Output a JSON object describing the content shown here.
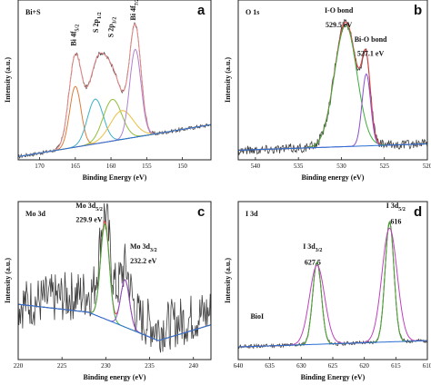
{
  "chart_data": [
    {
      "type": "line",
      "panel_label": "a",
      "title": "Bi+S",
      "xlabel": "Binding Energy (eV)",
      "ylabel": "Intensity (a.u.)",
      "xlim": [
        173,
        146
      ],
      "xticks": [
        170,
        165,
        160,
        155,
        150
      ],
      "ylim": [
        0,
        1
      ],
      "annotations": [
        {
          "text": "Bi 4f",
          "sub": "5/2",
          "x": 164.9,
          "y": 0.78
        },
        {
          "text": "S 2p",
          "sub": "1/2",
          "x": 161.8,
          "y": 0.86
        },
        {
          "text": "S 2p",
          "sub": "3/2",
          "x": 159.7,
          "y": 0.83
        },
        {
          "text": "Bi 4f",
          "sub": "7/2",
          "x": 156.6,
          "y": 0.94
        }
      ],
      "series": [
        {
          "color": "#404040",
          "kind": "raw",
          "baseline": [
            [
              173,
              0.02
            ],
            [
              146,
              0.22
            ]
          ],
          "peaks": [
            [
              165.0,
              0.56,
              0.9
            ],
            [
              162.1,
              0.42,
              1.2
            ],
            [
              159.8,
              0.4,
              1.4
            ],
            [
              156.6,
              0.68,
              0.8
            ]
          ],
          "noise": 0.012
        },
        {
          "color": "#e88a8a",
          "kind": "fit",
          "baseline": [
            [
              173,
              0.02
            ],
            [
              146,
              0.22
            ]
          ],
          "peaks": [
            [
              165.0,
              0.56,
              0.9
            ],
            [
              162.1,
              0.42,
              1.2
            ],
            [
              159.8,
              0.4,
              1.4
            ],
            [
              156.6,
              0.68,
              0.8
            ]
          ]
        },
        {
          "color": "#e07a3a",
          "kind": "peak",
          "baseline": [
            [
              173,
              0.02
            ],
            [
              146,
              0.22
            ]
          ],
          "peaks": [
            [
              165.0,
              0.38,
              0.8
            ]
          ]
        },
        {
          "color": "#3cb0c8",
          "kind": "peak",
          "baseline": [
            [
              173,
              0.02
            ],
            [
              146,
              0.22
            ]
          ],
          "peaks": [
            [
              162.2,
              0.28,
              1.1
            ]
          ]
        },
        {
          "color": "#8fbf3a",
          "kind": "peak",
          "baseline": [
            [
              173,
              0.02
            ],
            [
              146,
              0.22
            ]
          ],
          "peaks": [
            [
              159.8,
              0.26,
              1.3
            ]
          ]
        },
        {
          "color": "#e8c040",
          "kind": "peak",
          "baseline": [
            [
              173,
              0.02
            ],
            [
              146,
              0.22
            ]
          ],
          "peaks": [
            [
              158.5,
              0.18,
              1.6
            ]
          ]
        },
        {
          "color": "#b080d0",
          "kind": "peak",
          "baseline": [
            [
              173,
              0.02
            ],
            [
              146,
              0.22
            ]
          ],
          "peaks": [
            [
              156.6,
              0.55,
              0.8
            ]
          ]
        },
        {
          "color": "#2a6fd0",
          "kind": "baseline",
          "baseline": [
            [
              173,
              0.02
            ],
            [
              146,
              0.22
            ]
          ],
          "peaks": []
        }
      ]
    },
    {
      "type": "line",
      "panel_label": "b",
      "title": "O 1s",
      "xlabel": "Binding energy (eV)",
      "ylabel": "Intensity (a.u.)",
      "xlim": [
        542,
        520
      ],
      "xticks": [
        540,
        535,
        530,
        525,
        520
      ],
      "ylim": [
        0,
        1
      ],
      "annotations": [
        {
          "text": "I-O bond",
          "x": 530.3,
          "y": 0.92
        },
        {
          "text": "529.5 eV",
          "x": 530.3,
          "y": 0.83
        },
        {
          "text": "Bi-O bond",
          "x": 526.6,
          "y": 0.74
        },
        {
          "text": "527.1 eV",
          "x": 526.6,
          "y": 0.65
        }
      ],
      "series": [
        {
          "color": "#404040",
          "kind": "raw",
          "baseline": [
            [
              542,
              0.06
            ],
            [
              520,
              0.1
            ]
          ],
          "peaks": [
            [
              529.5,
              0.78,
              1.3
            ],
            [
              527.1,
              0.45,
              0.5
            ]
          ],
          "noise": 0.03
        },
        {
          "color": "#e04040",
          "kind": "fit",
          "baseline": [
            [
              542,
              0.06
            ],
            [
              520,
              0.1
            ]
          ],
          "peaks": [
            [
              529.5,
              0.78,
              1.3
            ],
            [
              527.1,
              0.45,
              0.5
            ]
          ]
        },
        {
          "color": "#3cae3c",
          "kind": "peak",
          "baseline": [
            [
              542,
              0.06
            ],
            [
              520,
              0.1
            ]
          ],
          "peaks": [
            [
              529.5,
              0.76,
              1.3
            ]
          ]
        },
        {
          "color": "#8a4fd0",
          "kind": "peak",
          "baseline": [
            [
              542,
              0.06
            ],
            [
              520,
              0.1
            ]
          ],
          "peaks": [
            [
              527.1,
              0.45,
              0.5
            ]
          ]
        },
        {
          "color": "#2a6fd0",
          "kind": "baseline",
          "baseline": [
            [
              542,
              0.06
            ],
            [
              520,
              0.1
            ]
          ],
          "peaks": []
        }
      ]
    },
    {
      "type": "line",
      "panel_label": "c",
      "title": "Mo 3d",
      "xlabel": "Binding energy (eV)",
      "ylabel": "Intensity (a.u.)",
      "xlim": [
        220,
        242
      ],
      "xticks": [
        220,
        225,
        230,
        235,
        240
      ],
      "ylim": [
        0,
        1
      ],
      "annotations": [
        {
          "text": "Mo 3d",
          "sub": "5/2",
          "x": 228.1,
          "y": 0.96
        },
        {
          "text": "229.9 eV",
          "x": 228.1,
          "y": 0.87
        },
        {
          "text": "Mo 3d",
          "sub": "3/2",
          "x": 234.3,
          "y": 0.7
        },
        {
          "text": "232.2 eV",
          "x": 234.3,
          "y": 0.61
        }
      ],
      "series": [
        {
          "color": "#404040",
          "kind": "raw",
          "baseline": [
            [
              220,
              0.35
            ],
            [
              228,
              0.42
            ],
            [
              236,
              0.2
            ],
            [
              242,
              0.3
            ]
          ],
          "peaks": [
            [
              229.9,
              0.55,
              0.6
            ],
            [
              232.2,
              0.28,
              0.6
            ]
          ],
          "noise": 0.16
        },
        {
          "color": "#e04040",
          "kind": "fit",
          "baseline": [
            [
              220,
              0.35
            ],
            [
              228,
              0.3
            ],
            [
              236,
              0.12
            ],
            [
              242,
              0.22
            ]
          ],
          "peaks": [
            [
              229.9,
              0.62,
              0.5
            ],
            [
              232.2,
              0.3,
              0.5
            ]
          ]
        },
        {
          "color": "#3cae3c",
          "kind": "peak",
          "baseline": [
            [
              220,
              0.35
            ],
            [
              228,
              0.3
            ],
            [
              236,
              0.12
            ],
            [
              242,
              0.22
            ]
          ],
          "peaks": [
            [
              229.9,
              0.6,
              0.5
            ]
          ]
        },
        {
          "color": "#8a4fd0",
          "kind": "peak",
          "baseline": [
            [
              220,
              0.35
            ],
            [
              228,
              0.3
            ],
            [
              236,
              0.12
            ],
            [
              242,
              0.22
            ]
          ],
          "peaks": [
            [
              232.2,
              0.3,
              0.5
            ]
          ]
        },
        {
          "color": "#2a6fd0",
          "kind": "baseline",
          "baseline": [
            [
              220,
              0.35
            ],
            [
              228,
              0.3
            ],
            [
              236,
              0.12
            ],
            [
              242,
              0.22
            ]
          ],
          "peaks": []
        }
      ]
    },
    {
      "type": "line",
      "panel_label": "d",
      "title": "I 3d",
      "xlabel": "Binding Energy (eV)",
      "ylabel": "Intensity (a.u.)",
      "xlim": [
        640,
        610
      ],
      "xticks": [
        640,
        635,
        630,
        625,
        620,
        615,
        610
      ],
      "ylim": [
        0,
        1
      ],
      "annotations": [
        {
          "text": "I 3d",
          "sub": "3/2",
          "x": 628.2,
          "y": 0.7
        },
        {
          "text": "627.5",
          "x": 628.2,
          "y": 0.6
        },
        {
          "text": "I 3d",
          "sub": "5/2",
          "x": 615.0,
          "y": 0.96
        },
        {
          "text": "616",
          "x": 615.0,
          "y": 0.86
        },
        {
          "text": "BioI",
          "x": 637.0,
          "y": 0.26
        }
      ],
      "series": [
        {
          "color": "#404040",
          "kind": "raw",
          "baseline": [
            [
              640,
              0.08
            ],
            [
              610,
              0.12
            ]
          ],
          "peaks": [
            [
              627.5,
              0.52,
              0.7
            ],
            [
              616,
              0.76,
              0.7
            ]
          ],
          "noise": 0.012
        },
        {
          "color": "#e04040",
          "kind": "fit",
          "baseline": [
            [
              640,
              0.08
            ],
            [
              610,
              0.12
            ]
          ],
          "peaks": [
            [
              627.5,
              0.52,
              0.7
            ],
            [
              616,
              0.76,
              0.7
            ]
          ]
        },
        {
          "color": "#3cae3c",
          "kind": "peak",
          "baseline": [
            [
              640,
              0.08
            ],
            [
              610,
              0.12
            ]
          ],
          "peaks": [
            [
              627.5,
              0.52,
              0.7
            ],
            [
              616,
              0.76,
              0.7
            ]
          ]
        },
        {
          "color": "#c040c0",
          "kind": "peak",
          "baseline": [
            [
              640,
              0.08
            ],
            [
              610,
              0.12
            ]
          ],
          "peaks": [
            [
              627.5,
              0.5,
              1.2
            ],
            [
              616,
              0.72,
              1.2
            ]
          ]
        },
        {
          "color": "#2a6fd0",
          "kind": "baseline",
          "baseline": [
            [
              640,
              0.08
            ],
            [
              610,
              0.12
            ]
          ],
          "peaks": []
        }
      ]
    }
  ]
}
